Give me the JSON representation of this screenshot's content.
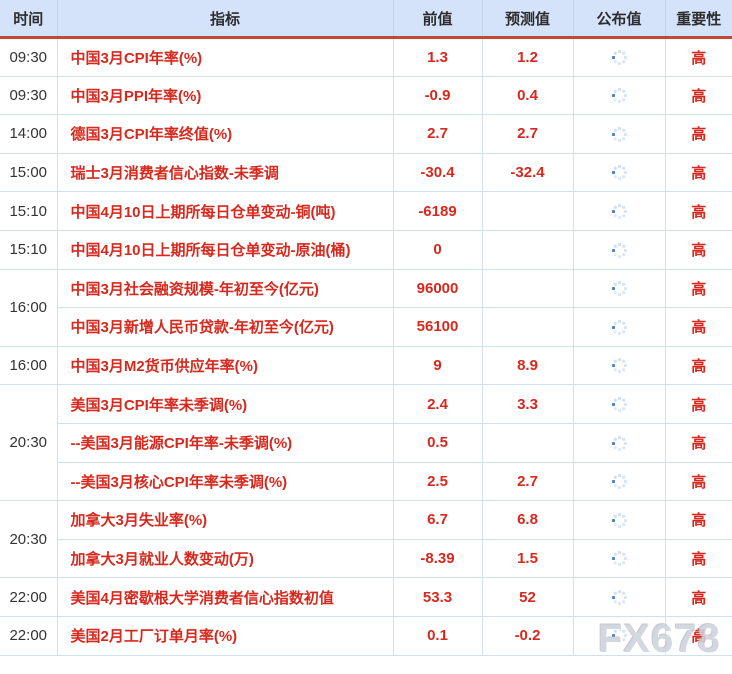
{
  "colors": {
    "accent_red": "#d7281d",
    "header_background": "#d4e2fa",
    "header_rule_red": "#bf4a38",
    "row_border_blue": "#cfe0f5",
    "time_text": "#333333",
    "spinner_dark_dot": "#4d7fd0",
    "spinner_light_dot": "#c2d6f2",
    "watermark_gray": "#ccd2db"
  },
  "watermark": {
    "text": "FX678"
  },
  "table": {
    "headers": [
      {
        "key": "time",
        "label": "时间"
      },
      {
        "key": "indicator",
        "label": "指标"
      },
      {
        "key": "previous",
        "label": "前值"
      },
      {
        "key": "forecast",
        "label": "预测值"
      },
      {
        "key": "published",
        "label": "公布值"
      },
      {
        "key": "importance",
        "label": "重要性"
      }
    ],
    "published_icon": "loading-spinner-icon",
    "rows": [
      {
        "time": "09:30",
        "rowspan": 1,
        "indicator": "中国3月CPI年率(%)",
        "previous": "1.3",
        "forecast": "1.2",
        "published": "loading",
        "importance": "高"
      },
      {
        "time": "09:30",
        "rowspan": 1,
        "indicator": "中国3月PPI年率(%)",
        "previous": "-0.9",
        "forecast": "0.4",
        "published": "loading",
        "importance": "高"
      },
      {
        "time": "14:00",
        "rowspan": 1,
        "indicator": "德国3月CPI年率终值(%)",
        "previous": "2.7",
        "forecast": "2.7",
        "published": "loading",
        "importance": "高"
      },
      {
        "time": "15:00",
        "rowspan": 1,
        "indicator": "瑞士3月消费者信心指数-未季调",
        "previous": "-30.4",
        "forecast": "-32.4",
        "published": "loading",
        "importance": "高"
      },
      {
        "time": "15:10",
        "rowspan": 1,
        "indicator": "中国4月10日上期所每日仓单变动-铜(吨)",
        "previous": "-6189",
        "forecast": "",
        "published": "loading",
        "importance": "高"
      },
      {
        "time": "15:10",
        "rowspan": 1,
        "indicator": "中国4月10日上期所每日仓单变动-原油(桶)",
        "previous": "0",
        "forecast": "",
        "published": "loading",
        "importance": "高"
      },
      {
        "time": "16:00",
        "rowspan": 2,
        "indicator": "中国3月社会融资规模-年初至今(亿元)",
        "previous": "96000",
        "forecast": "",
        "published": "loading",
        "importance": "高"
      },
      {
        "time": null,
        "indicator": "中国3月新增人民币贷款-年初至今(亿元)",
        "previous": "56100",
        "forecast": "",
        "published": "loading",
        "importance": "高"
      },
      {
        "time": "16:00",
        "rowspan": 1,
        "indicator": "中国3月M2货币供应年率(%)",
        "previous": "9",
        "forecast": "8.9",
        "published": "loading",
        "importance": "高"
      },
      {
        "time": "20:30",
        "rowspan": 3,
        "indicator": "美国3月CPI年率未季调(%)",
        "previous": "2.4",
        "forecast": "3.3",
        "published": "loading",
        "importance": "高"
      },
      {
        "time": null,
        "indicator": "--美国3月能源CPI年率-未季调(%)",
        "previous": "0.5",
        "forecast": "",
        "published": "loading",
        "importance": "高"
      },
      {
        "time": null,
        "indicator": "--美国3月核心CPI年率未季调(%)",
        "previous": "2.5",
        "forecast": "2.7",
        "published": "loading",
        "importance": "高"
      },
      {
        "time": "20:30",
        "rowspan": 2,
        "indicator": "加拿大3月失业率(%)",
        "previous": "6.7",
        "forecast": "6.8",
        "published": "loading",
        "importance": "高"
      },
      {
        "time": null,
        "indicator": "加拿大3月就业人数变动(万)",
        "previous": "-8.39",
        "forecast": "1.5",
        "published": "loading",
        "importance": "高"
      },
      {
        "time": "22:00",
        "rowspan": 1,
        "indicator": "美国4月密歇根大学消费者信心指数初值",
        "previous": "53.3",
        "forecast": "52",
        "published": "loading",
        "importance": "高"
      },
      {
        "time": "22:00",
        "rowspan": 1,
        "indicator": "美国2月工厂订单月率(%)",
        "previous": "0.1",
        "forecast": "-0.2",
        "published": "loading",
        "importance": "高"
      }
    ]
  }
}
